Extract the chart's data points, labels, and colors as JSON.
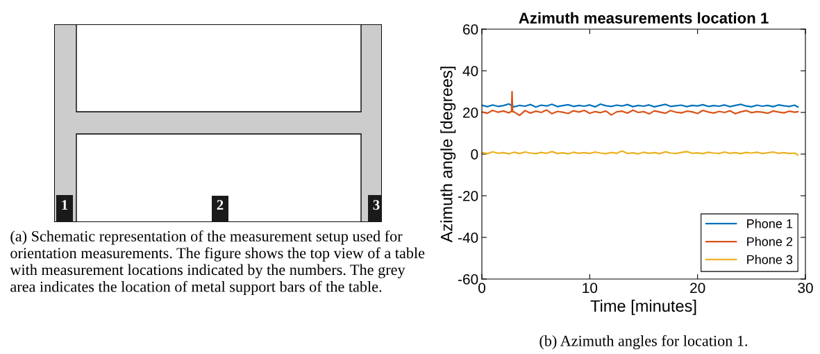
{
  "chart_data": [
    {
      "type": "other",
      "annotations": [
        "1",
        "2",
        "3",
        "(a) Schematic representation of the measurement setup used for orientation measurements. The figure shows the top view of a table with measurement locations indicated by the numbers. The grey area indicates the location of metal support bars of the table."
      ]
    },
    {
      "type": "line",
      "title": "Azimuth measurements location 1",
      "xlabel": "Time [minutes]",
      "ylabel": "Azimuth angle [degrees]",
      "x": [
        0,
        0.5,
        1,
        1.5,
        2,
        2.5,
        3,
        3.5,
        4,
        4.5,
        5,
        5.5,
        6,
        6.5,
        7,
        7.5,
        8,
        8.5,
        9,
        9.5,
        10,
        10.5,
        11,
        11.5,
        12,
        12.5,
        13,
        13.5,
        14,
        14.5,
        15,
        15.5,
        16,
        16.5,
        17,
        17.5,
        18,
        18.5,
        19,
        19.5,
        20,
        20.5,
        21,
        21.5,
        22,
        22.5,
        23,
        23.5,
        24,
        24.5,
        25,
        25.5,
        26,
        26.5,
        27,
        27.5,
        28,
        28.5,
        29,
        29.3
      ],
      "xlim": [
        0,
        30
      ],
      "ylim": [
        -60,
        60
      ],
      "xticks": [
        0,
        10,
        20,
        30
      ],
      "yticks": [
        -60,
        -40,
        -20,
        0,
        20,
        40,
        60
      ],
      "legend": "bottom right",
      "annotations": [
        "(b) Azimuth angles for location 1."
      ],
      "series": [
        {
          "name": "Phone 1",
          "color": "#0072bd",
          "values": [
            23.5,
            22.8,
            23.6,
            22.9,
            23.3,
            24.1,
            22.7,
            23.4,
            23.0,
            23.8,
            22.6,
            23.5,
            23.1,
            23.9,
            22.8,
            23.3,
            23.7,
            22.9,
            23.4,
            23.0,
            23.6,
            22.7,
            24.0,
            23.2,
            22.9,
            23.5,
            23.1,
            23.8,
            22.8,
            23.4,
            23.0,
            23.6,
            22.7,
            23.3,
            23.9,
            22.9,
            23.2,
            23.5,
            22.8,
            23.4,
            23.1,
            23.7,
            22.9,
            23.3,
            23.0,
            23.6,
            22.8,
            23.4,
            23.9,
            23.1,
            22.7,
            23.5,
            23.0,
            23.4,
            22.8,
            23.6,
            23.2,
            22.9,
            23.5,
            22.6
          ]
        },
        {
          "name": "Phone 2",
          "color": "#d95319",
          "x": [
            0,
            0.5,
            1,
            1.5,
            2,
            2.5,
            2.75,
            2.8,
            2.85,
            3,
            3.5,
            4,
            4.5,
            5,
            5.5,
            6,
            6.5,
            7,
            7.5,
            8,
            8.5,
            9,
            9.5,
            10,
            10.5,
            11,
            11.5,
            12,
            12.5,
            13,
            13.5,
            14,
            14.5,
            15,
            15.5,
            16,
            16.5,
            17,
            17.5,
            18,
            18.5,
            19,
            19.5,
            20,
            20.5,
            21,
            21.5,
            22,
            22.5,
            23,
            23.5,
            24,
            24.5,
            25,
            25.5,
            26,
            26.5,
            27,
            27.5,
            28,
            28.5,
            29,
            29.3
          ],
          "values": [
            20.3,
            19.6,
            21.0,
            20.1,
            20.7,
            19.8,
            20.5,
            30,
            20.4,
            20.2,
            18.6,
            20.9,
            19.7,
            20.6,
            20.0,
            21.2,
            19.4,
            20.5,
            20.1,
            19.5,
            20.8,
            20.2,
            21.0,
            19.6,
            20.4,
            19.9,
            20.7,
            18.8,
            20.3,
            20.6,
            19.7,
            21.1,
            20.0,
            20.4,
            19.3,
            20.8,
            20.2,
            19.6,
            20.9,
            20.1,
            19.8,
            20.6,
            20.3,
            19.5,
            21.0,
            20.2,
            19.7,
            20.5,
            20.0,
            20.8,
            19.4,
            20.3,
            20.9,
            19.9,
            20.4,
            20.1,
            19.6,
            20.7,
            20.2,
            19.8,
            20.6,
            20.1,
            20.3
          ]
        },
        {
          "name": "Phone 3",
          "color": "#edb120",
          "values": [
            0.8,
            0.2,
            1.1,
            0.4,
            0.7,
            0.1,
            0.9,
            0.3,
            1.0,
            0.5,
            0.2,
            0.8,
            0.4,
            1.2,
            0.3,
            0.6,
            0.1,
            0.9,
            0.4,
            0.7,
            0.3,
            1.0,
            0.5,
            0.2,
            0.8,
            0.4,
            1.5,
            0.3,
            0.6,
            0.1,
            0.9,
            0.4,
            0.7,
            0.2,
            1.1,
            0.5,
            0.3,
            0.8,
            1.2,
            0.4,
            0.6,
            0.2,
            0.9,
            0.5,
            0.3,
            1.0,
            0.4,
            0.7,
            0.2,
            0.8,
            0.5,
            0.9,
            0.3,
            0.6,
            1.0,
            0.4,
            0.7,
            0.3,
            0.5,
            -0.4
          ]
        }
      ]
    }
  ]
}
